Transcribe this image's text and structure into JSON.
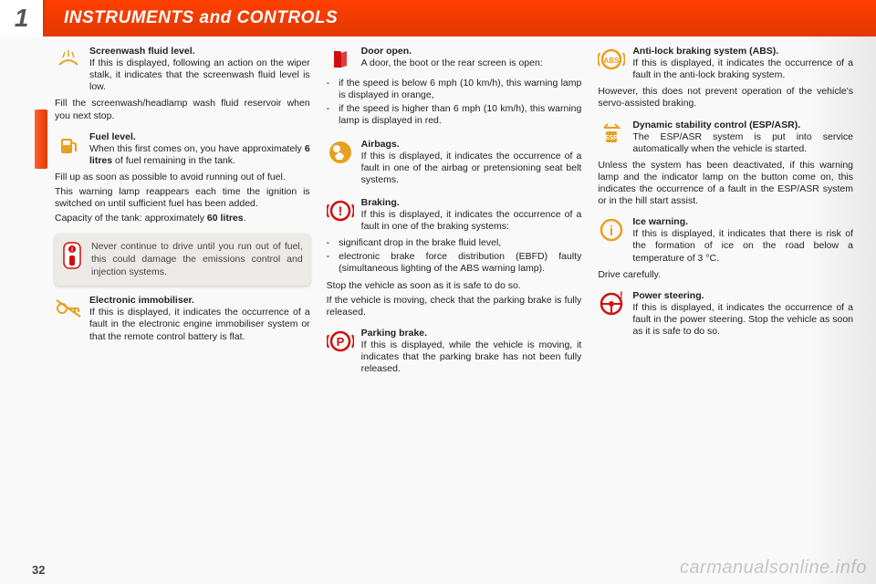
{
  "header": {
    "tab_number": "1",
    "title": "INSTRUMENTS and CONTROLS"
  },
  "page_number": "32",
  "watermark": "carmanualsonline.info",
  "callout": {
    "text": "Never continue to drive until you run out of fuel, this could damage the emissions control and injection systems."
  },
  "col1": [
    {
      "icon": "screenwash",
      "icon_color": "#e8a020",
      "title": "Screenwash fluid level.",
      "text": "If this is displayed, following an action on the wiper stalk, it indicates that the screenwash fluid level is low.",
      "after": [
        "Fill the screenwash/headlamp wash fluid reservoir when you next stop."
      ]
    },
    {
      "icon": "fuel",
      "icon_color": "#e8a020",
      "title": "Fuel level.",
      "text": "When this first comes on, you have approximately 6 litres of fuel remaining in the tank.",
      "after": [
        "Fill up as soon as possible to avoid running out of fuel.",
        "This warning lamp reappears each time the ignition is switched on until sufficient fuel has been added.",
        "Capacity of the tank: approximately 60 litres."
      ],
      "bold_in_text": true
    },
    {
      "icon": "key",
      "icon_color": "#e8a020",
      "title": "Electronic immobiliser.",
      "text": "If this is displayed, it indicates the occurrence of a fault in the electronic engine immobiliser system or that the remote control battery is flat.",
      "after": []
    }
  ],
  "col2": [
    {
      "icon": "door",
      "icon_color": "#d01010",
      "title": "Door open.",
      "text": "A door, the boot or the rear screen is open:",
      "bullets": [
        "if the speed is below 6 mph (10 km/h), this warning lamp is displayed in orange,",
        "if the speed is higher than 6 mph (10 km/h), this warning lamp is displayed in red."
      ]
    },
    {
      "icon": "airbag",
      "icon_color": "#e8a020",
      "title": "Airbags.",
      "text": "If this is displayed, it indicates the occurrence of a fault in one of the airbag or pretensioning seat belt systems."
    },
    {
      "icon": "brake",
      "icon_color": "#d01010",
      "title": "Braking.",
      "text": "If this is displayed, it indicates the occurrence of a fault in one of the braking systems:",
      "bullets": [
        "significant drop in the brake fluid level,",
        "electronic brake force distribution (EBFD) faulty (simultaneous lighting of the ABS warning lamp)."
      ],
      "after": [
        "Stop the vehicle as soon as it is safe to do so.",
        "If the vehicle is moving, check that the parking brake is fully released."
      ]
    },
    {
      "icon": "parking",
      "icon_color": "#d01010",
      "title": "Parking brake.",
      "text": "If this is displayed, while the vehicle is moving, it indicates that the parking brake has not been fully released."
    }
  ],
  "col3": [
    {
      "icon": "abs",
      "icon_color": "#e8a020",
      "title": "Anti-lock braking system (ABS).",
      "text": "If this is displayed, it indicates the occurrence of a fault in the anti-lock braking system.",
      "after": [
        "However, this does not prevent operation of the vehicle's servo-assisted braking."
      ]
    },
    {
      "icon": "esp",
      "icon_color": "#e8a020",
      "title": "Dynamic stability control (ESP/ASR).",
      "text": "The ESP/ASR system is put into service automatically when the vehicle is started.",
      "after": [
        "Unless the system has been deactivated, if this warning lamp and the indicator lamp on the button come on, this indicates the occurrence of a fault in the ESP/ASR system or in the hill start assist."
      ]
    },
    {
      "icon": "ice",
      "icon_color": "#e8a020",
      "title": "Ice warning.",
      "text": "If this is displayed, it indicates that there is risk of the formation of ice on the road below a temperature of 3 °C.",
      "after": [
        "Drive carefully."
      ]
    },
    {
      "icon": "steering",
      "icon_color": "#d01010",
      "title": "Power steering.",
      "text": "If this is displayed, it indicates the occurrence of a fault in the power steering. Stop the vehicle as soon as it is safe to do so."
    }
  ]
}
